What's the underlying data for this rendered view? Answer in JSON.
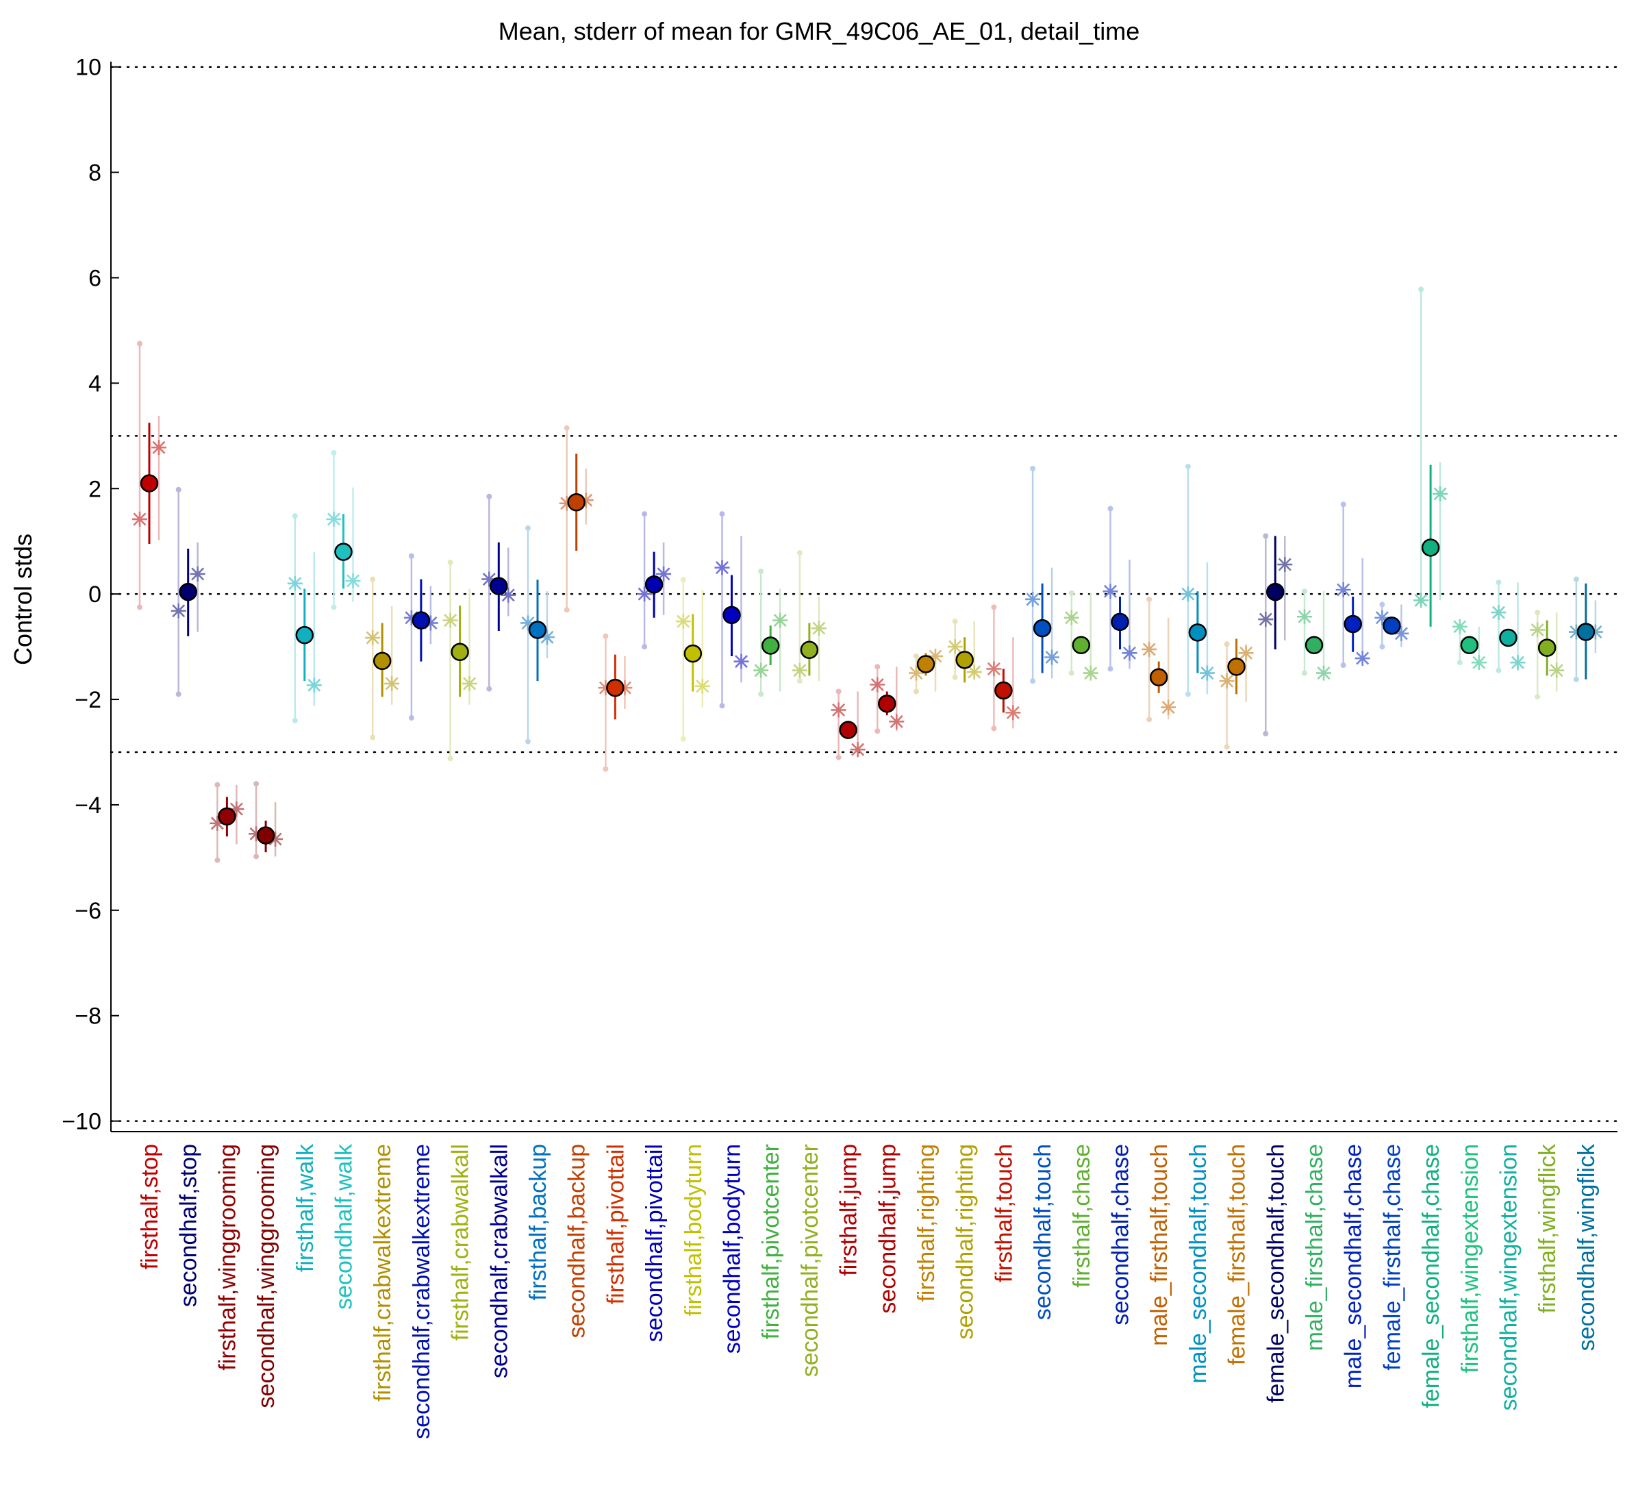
{
  "chart_data": {
    "type": "scatter",
    "title": "Mean, stderr of mean for GMR_49C06_AE_01, detail_time",
    "xlabel": "",
    "ylabel": "Control stds",
    "ylim": [
      -10.2,
      10.1
    ],
    "y_ticks": [
      10,
      8,
      6,
      4,
      2,
      0,
      -2,
      -4,
      -6,
      -8,
      -10
    ],
    "y_tick_labels": [
      "10",
      "8",
      "6",
      "4",
      "2",
      "0",
      "−2",
      "−4",
      "−6",
      "−8",
      "−10"
    ],
    "reference_lines": [
      10,
      3,
      0,
      -3,
      -10
    ],
    "grid": false,
    "legend": "none",
    "categories": [
      {
        "label": "firsthalf,stop",
        "color": "#c00000",
        "mean": 2.1,
        "se_lo": 0.95,
        "se_hi": 3.25,
        "left": 1.42,
        "right": 2.78,
        "range_lo": -0.25,
        "range_hi": 4.75
      },
      {
        "label": "secondhalf,stop",
        "color": "#000070",
        "mean": 0.04,
        "se_lo": -0.8,
        "se_hi": 0.86,
        "left": -0.32,
        "right": 0.38,
        "range_lo": -1.9,
        "range_hi": 1.98
      },
      {
        "label": "firsthalf,winggrooming",
        "color": "#900000",
        "mean": -4.22,
        "se_lo": -4.6,
        "se_hi": -3.85,
        "left": -4.35,
        "right": -4.08,
        "range_lo": -5.05,
        "range_hi": -3.62
      },
      {
        "label": "secondhalf,winggrooming",
        "color": "#800000",
        "mean": -4.58,
        "se_lo": -4.9,
        "se_hi": -4.3,
        "left": -4.55,
        "right": -4.65,
        "range_lo": -4.98,
        "range_hi": -3.6
      },
      {
        "label": "firsthalf,walk",
        "color": "#10b0c0",
        "mean": -0.78,
        "se_lo": -1.65,
        "se_hi": 0.1,
        "left": 0.2,
        "right": -1.73,
        "range_lo": -2.4,
        "range_hi": 1.48
      },
      {
        "label": "secondhalf,walk",
        "color": "#20c0c0",
        "mean": 0.8,
        "se_lo": 0.1,
        "se_hi": 1.52,
        "left": 1.42,
        "right": 0.25,
        "range_lo": -0.25,
        "range_hi": 2.68
      },
      {
        "label": "firsthalf,crabwalkextreme",
        "color": "#b09000",
        "mean": -1.27,
        "se_lo": -1.95,
        "se_hi": -0.55,
        "left": -0.83,
        "right": -1.7,
        "range_lo": -2.72,
        "range_hi": 0.28
      },
      {
        "label": "secondhalf,crabwalkextreme",
        "color": "#0010b0",
        "mean": -0.5,
        "se_lo": -1.28,
        "se_hi": 0.28,
        "left": -0.45,
        "right": -0.55,
        "range_lo": -2.35,
        "range_hi": 0.72
      },
      {
        "label": "firsthalf,crabwalkall",
        "color": "#a0b010",
        "mean": -1.1,
        "se_lo": -1.95,
        "se_hi": -0.22,
        "left": -0.5,
        "right": -1.7,
        "range_lo": -3.12,
        "range_hi": 0.6
      },
      {
        "label": "secondhalf,crabwalkall",
        "color": "#000090",
        "mean": 0.15,
        "se_lo": -0.7,
        "se_hi": 0.98,
        "left": 0.28,
        "right": -0.02,
        "range_lo": -1.8,
        "range_hi": 1.85
      },
      {
        "label": "firsthalf,backup",
        "color": "#0070c0",
        "mean": -0.68,
        "se_lo": -1.65,
        "se_hi": 0.27,
        "left": -0.55,
        "right": -0.82,
        "range_lo": -2.8,
        "range_hi": 1.25
      },
      {
        "label": "secondhalf,backup",
        "color": "#c04000",
        "mean": 1.74,
        "se_lo": 0.82,
        "se_hi": 2.66,
        "left": 1.72,
        "right": 1.78,
        "range_lo": -0.3,
        "range_hi": 3.15
      },
      {
        "label": "firsthalf,pivottail",
        "color": "#d03000",
        "mean": -1.78,
        "se_lo": -2.38,
        "se_hi": -1.15,
        "left": -1.78,
        "right": -1.78,
        "range_lo": -3.32,
        "range_hi": -0.8
      },
      {
        "label": "secondhalf,pivottail",
        "color": "#0000b0",
        "mean": 0.18,
        "se_lo": -0.45,
        "se_hi": 0.8,
        "left": 0.0,
        "right": 0.38,
        "range_lo": -1.0,
        "range_hi": 1.52
      },
      {
        "label": "firsthalf,bodyturn",
        "color": "#c0c000",
        "mean": -1.13,
        "se_lo": -1.85,
        "se_hi": -0.38,
        "left": -0.52,
        "right": -1.75,
        "range_lo": -2.75,
        "range_hi": 0.27
      },
      {
        "label": "secondhalf,bodyturn",
        "color": "#0000c0",
        "mean": -0.4,
        "se_lo": -1.18,
        "se_hi": 0.36,
        "left": 0.5,
        "right": -1.28,
        "range_lo": -2.12,
        "range_hi": 1.52
      },
      {
        "label": "firsthalf,pivotcenter",
        "color": "#40b040",
        "mean": -0.98,
        "se_lo": -1.35,
        "se_hi": -0.6,
        "left": -1.45,
        "right": -0.5,
        "range_lo": -1.9,
        "range_hi": 0.43
      },
      {
        "label": "secondhalf,pivotcenter",
        "color": "#90b020",
        "mean": -1.06,
        "se_lo": -1.55,
        "se_hi": -0.55,
        "left": -1.45,
        "right": -0.65,
        "range_lo": -1.65,
        "range_hi": 0.78
      },
      {
        "label": "firsthalf,jump",
        "color": "#b00000",
        "mean": -2.58,
        "se_lo": -2.75,
        "se_hi": -2.42,
        "left": -2.2,
        "right": -2.95,
        "range_lo": -3.1,
        "range_hi": -1.85
      },
      {
        "label": "secondhalf,jump",
        "color": "#b00000",
        "mean": -2.08,
        "se_lo": -2.3,
        "se_hi": -1.85,
        "left": -1.72,
        "right": -2.42,
        "range_lo": -2.6,
        "range_hi": -1.38
      },
      {
        "label": "firsthalf,righting",
        "color": "#c08000",
        "mean": -1.33,
        "se_lo": -1.55,
        "se_hi": -1.12,
        "left": -1.5,
        "right": -1.18,
        "range_lo": -1.85,
        "range_hi": -1.18
      },
      {
        "label": "secondhalf,righting",
        "color": "#b0a000",
        "mean": -1.25,
        "se_lo": -1.68,
        "se_hi": -0.82,
        "left": -1.0,
        "right": -1.48,
        "range_lo": -1.58,
        "range_hi": -0.52
      },
      {
        "label": "firsthalf,touch",
        "color": "#c01000",
        "mean": -1.83,
        "se_lo": -2.25,
        "se_hi": -1.42,
        "left": -1.42,
        "right": -2.25,
        "range_lo": -2.55,
        "range_hi": -0.25
      },
      {
        "label": "secondhalf,touch",
        "color": "#0050c0",
        "mean": -0.65,
        "se_lo": -1.5,
        "se_hi": 0.2,
        "left": -0.1,
        "right": -1.2,
        "range_lo": -1.65,
        "range_hi": 2.38
      },
      {
        "label": "firsthalf,chase",
        "color": "#60b030",
        "mean": -0.97,
        "se_lo": -0.97,
        "se_hi": -0.97,
        "left": -0.45,
        "right": -1.5,
        "range_lo": -1.5,
        "range_hi": 0.02
      },
      {
        "label": "secondhalf,chase",
        "color": "#0020b0",
        "mean": -0.53,
        "se_lo": -1.05,
        "se_hi": -0.05,
        "left": 0.05,
        "right": -1.12,
        "range_lo": -1.42,
        "range_hi": 1.62
      },
      {
        "label": "male_firsthalf,touch",
        "color": "#c06000",
        "mean": -1.58,
        "se_lo": -1.88,
        "se_hi": -1.28,
        "left": -1.05,
        "right": -2.15,
        "range_lo": -2.38,
        "range_hi": -0.1
      },
      {
        "label": "male_secondhalf,touch",
        "color": "#0090c0",
        "mean": -0.73,
        "se_lo": -1.5,
        "se_hi": 0.05,
        "left": 0.0,
        "right": -1.5,
        "range_lo": -1.9,
        "range_hi": 2.42
      },
      {
        "label": "female_firsthalf,touch",
        "color": "#c07000",
        "mean": -1.38,
        "se_lo": -1.9,
        "se_hi": -0.85,
        "left": -1.65,
        "right": -1.12,
        "range_lo": -2.9,
        "range_hi": -0.95
      },
      {
        "label": "female_secondhalf,touch",
        "color": "#000060",
        "mean": 0.04,
        "se_lo": -1.05,
        "se_hi": 1.1,
        "left": -0.48,
        "right": 0.56,
        "range_lo": -2.65,
        "range_hi": 1.1
      },
      {
        "label": "male_firsthalf,chase",
        "color": "#30b060",
        "mean": -0.97,
        "se_lo": -0.97,
        "se_hi": -0.97,
        "left": -0.43,
        "right": -1.5,
        "range_lo": -1.5,
        "range_hi": 0.05
      },
      {
        "label": "male_secondhalf,chase",
        "color": "#0020c0",
        "mean": -0.57,
        "se_lo": -1.1,
        "se_hi": -0.05,
        "left": 0.08,
        "right": -1.22,
        "range_lo": -1.35,
        "range_hi": 1.7
      },
      {
        "label": "female_firsthalf,chase",
        "color": "#0040c0",
        "mean": -0.6,
        "se_lo": -0.72,
        "se_hi": -0.48,
        "left": -0.45,
        "right": -0.75,
        "range_lo": -1.0,
        "range_hi": -0.2
      },
      {
        "label": "female_secondhalf,chase",
        "color": "#10b080",
        "mean": 0.88,
        "se_lo": -0.62,
        "se_hi": 2.45,
        "left": -0.12,
        "right": 1.9,
        "range_lo": -0.12,
        "range_hi": 5.78
      },
      {
        "label": "firsthalf,wingextension",
        "color": "#20c080",
        "mean": -0.97,
        "se_lo": -0.97,
        "se_hi": -0.97,
        "left": -0.62,
        "right": -1.3,
        "range_lo": -1.3,
        "range_hi": -0.62
      },
      {
        "label": "secondhalf,wingextension",
        "color": "#10b0a0",
        "mean": -0.83,
        "se_lo": -0.83,
        "se_hi": -0.83,
        "left": -0.35,
        "right": -1.3,
        "range_lo": -1.45,
        "range_hi": 0.22
      },
      {
        "label": "firsthalf,wingflick",
        "color": "#80b020",
        "mean": -1.02,
        "se_lo": -1.55,
        "se_hi": -0.5,
        "left": -0.68,
        "right": -1.45,
        "range_lo": -1.95,
        "range_hi": -0.35
      },
      {
        "label": "secondhalf,wingflick",
        "color": "#0070a0",
        "mean": -0.72,
        "se_lo": -1.62,
        "se_hi": 0.2,
        "left": -0.72,
        "right": -0.72,
        "range_lo": -1.62,
        "range_hi": 0.28
      }
    ]
  }
}
